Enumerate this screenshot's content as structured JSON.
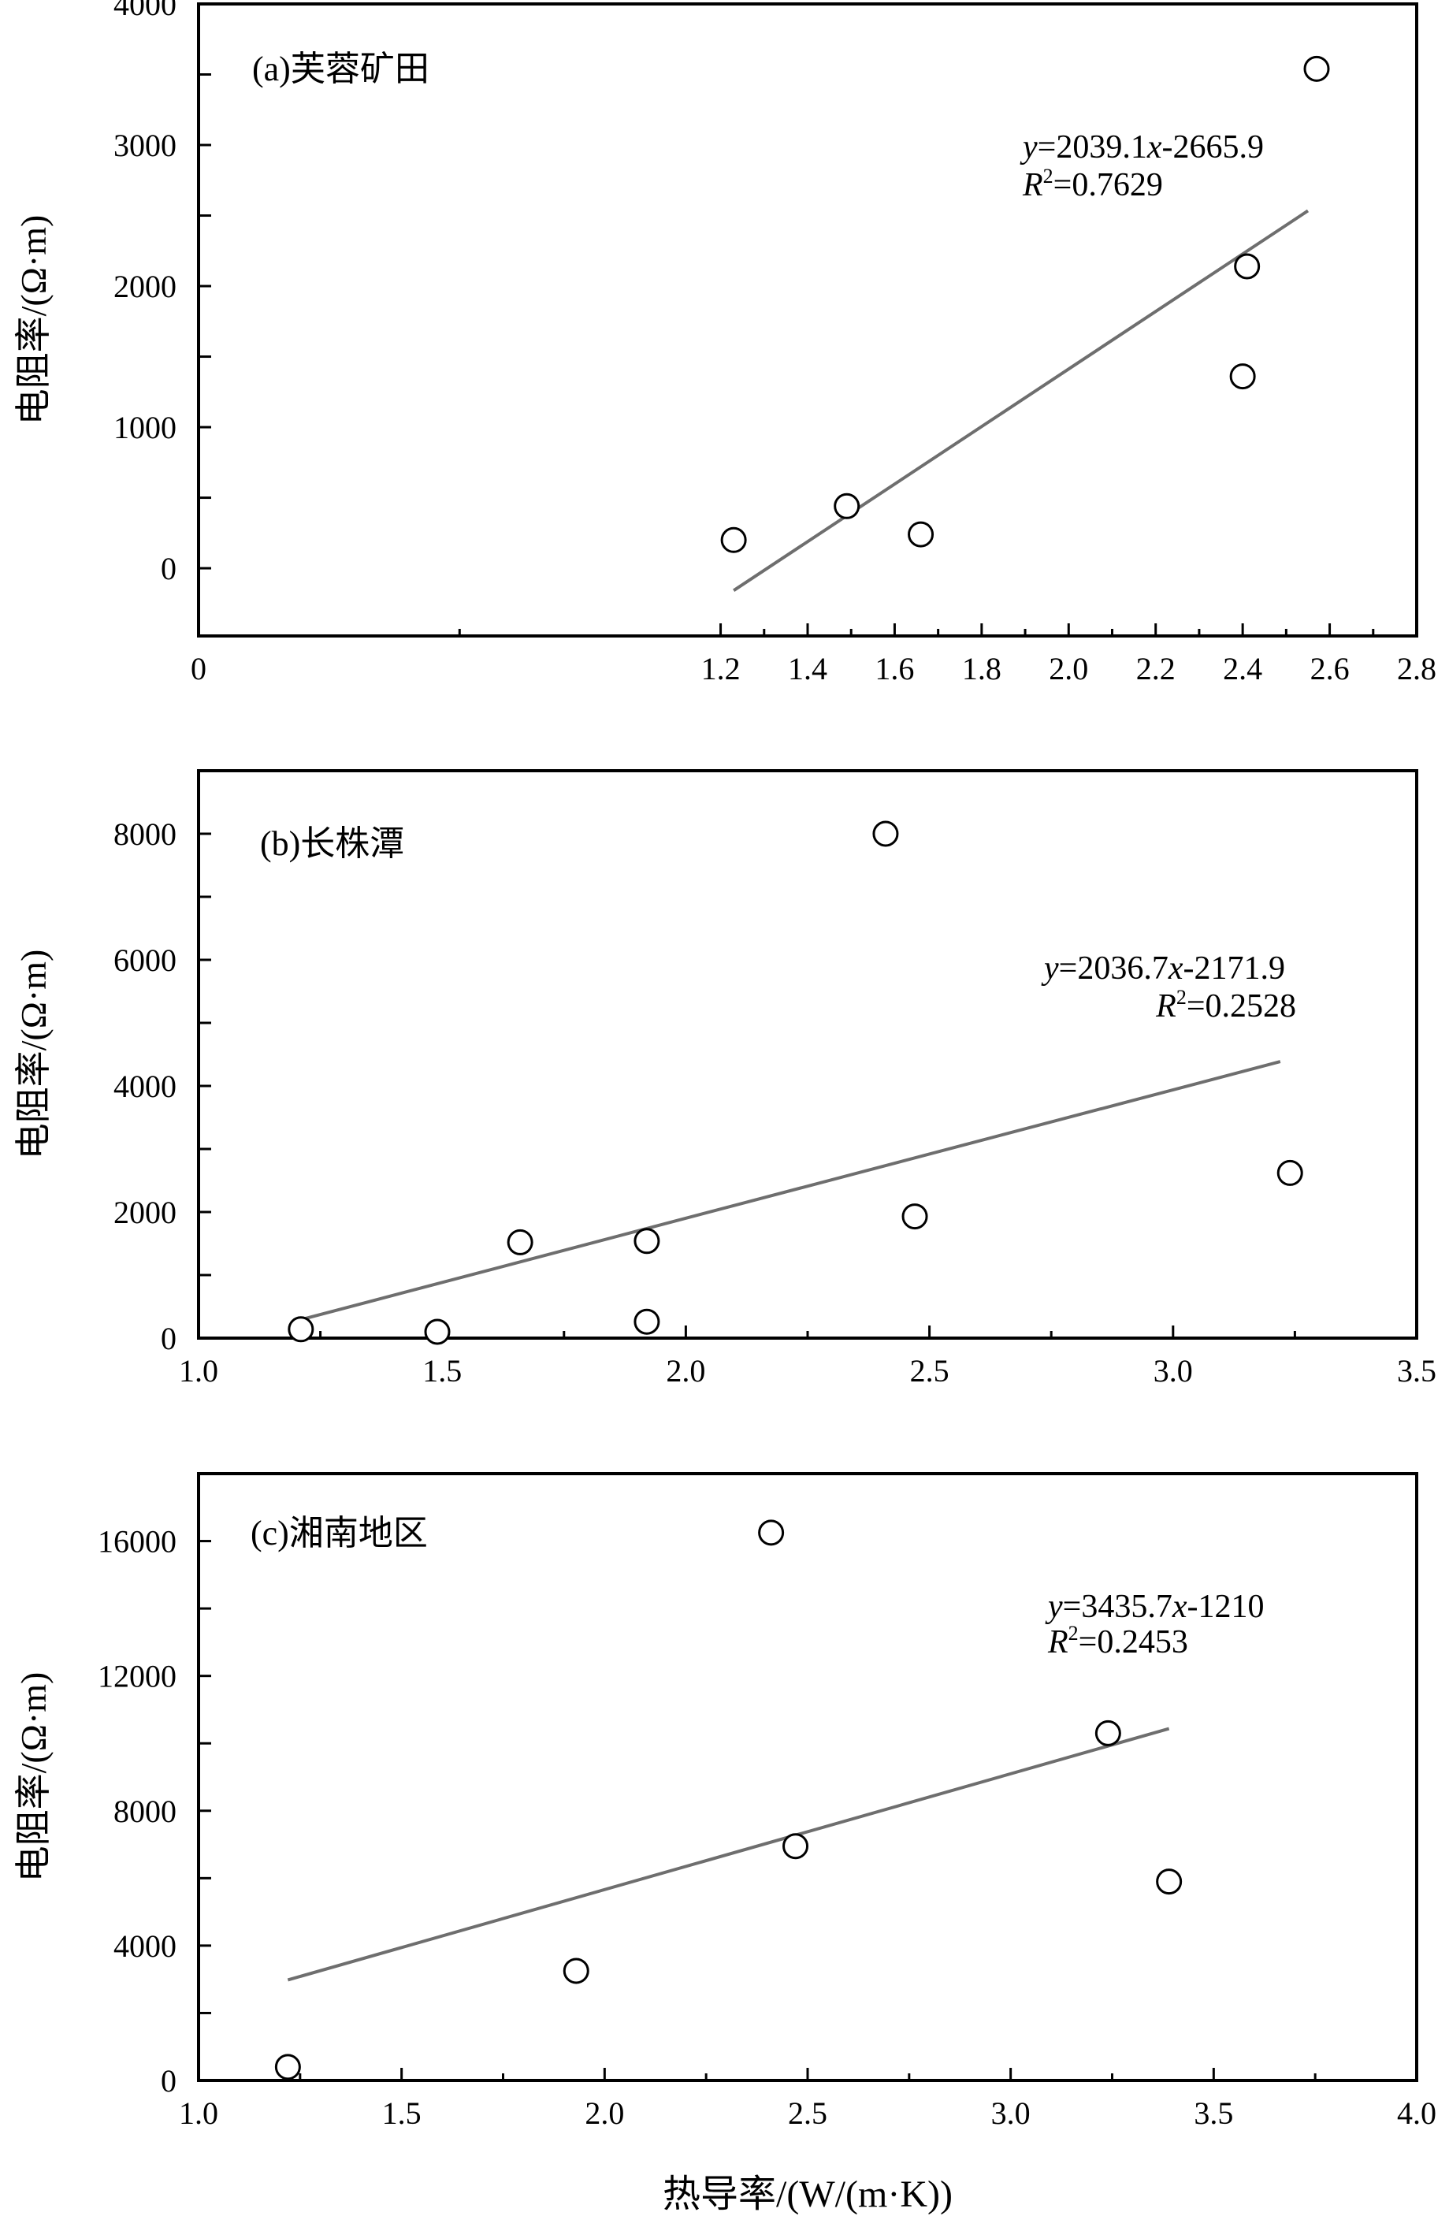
{
  "x_axis_label": "热导率/(W/(m·K))",
  "chart_data": [
    {
      "type": "scatter",
      "title": "(a)芙蓉矿田",
      "ylabel": "电阻率/(Ω·m)",
      "xlabel": "",
      "xlim": [
        0,
        2.8
      ],
      "ylim": [
        -480,
        4000
      ],
      "x_ticks": [
        0,
        1.2,
        1.4,
        1.6,
        1.8,
        2.0,
        2.2,
        2.4,
        2.6,
        2.8
      ],
      "x_tick_labels": [
        "0",
        "1.2",
        "1.4",
        "1.6",
        "1.8",
        "2.0",
        "2.2",
        "2.4",
        "2.6",
        "2.8"
      ],
      "y_ticks": [
        0,
        1000,
        2000,
        3000,
        4000
      ],
      "y_tick_labels": [
        "0",
        "1000",
        "2000",
        "3000",
        "4000"
      ],
      "y_minor_ticks": [
        500,
        1500,
        2500,
        3500
      ],
      "points": [
        {
          "x": 1.23,
          "y": 200
        },
        {
          "x": 1.49,
          "y": 440
        },
        {
          "x": 1.66,
          "y": 240
        },
        {
          "x": 2.4,
          "y": 1360
        },
        {
          "x": 2.41,
          "y": 2140
        },
        {
          "x": 2.57,
          "y": 3540
        }
      ],
      "trendline": {
        "slope": 2039.1,
        "intercept": -2665.9,
        "x_range": [
          1.23,
          2.55
        ]
      },
      "equation": {
        "y": "y",
        "rest": "=2039.1",
        "x": "x",
        "tail": "-2665.9"
      },
      "r2": {
        "r": "R",
        "sup": "2",
        "value": "=0.7629"
      },
      "grid": false
    },
    {
      "type": "scatter",
      "title": "(b)长株潭",
      "ylabel": "电阻率/(Ω·m)",
      "xlabel": "",
      "xlim": [
        1.0,
        3.5
      ],
      "ylim": [
        0,
        9000
      ],
      "x_ticks": [
        1.0,
        1.5,
        2.0,
        2.5,
        3.0,
        3.5
      ],
      "x_tick_labels": [
        "1.0",
        "1.5",
        "2.0",
        "2.5",
        "3.0",
        "3.5"
      ],
      "y_ticks": [
        0,
        2000,
        4000,
        6000,
        8000
      ],
      "y_tick_labels": [
        "0",
        "2000",
        "4000",
        "6000",
        "8000"
      ],
      "y_minor_ticks": [
        1000,
        3000,
        5000,
        7000
      ],
      "points": [
        {
          "x": 1.21,
          "y": 140
        },
        {
          "x": 1.49,
          "y": 100
        },
        {
          "x": 1.66,
          "y": 1520
        },
        {
          "x": 1.92,
          "y": 1540
        },
        {
          "x": 1.92,
          "y": 260
        },
        {
          "x": 2.41,
          "y": 8000
        },
        {
          "x": 2.47,
          "y": 1930
        },
        {
          "x": 3.24,
          "y": 2620
        }
      ],
      "trendline": {
        "slope": 2036.7,
        "intercept": -2171.9,
        "x_range": [
          1.21,
          3.22
        ]
      },
      "equation": {
        "y": "y",
        "rest": "=2036.7",
        "x": "x",
        "tail": "-2171.9"
      },
      "r2": {
        "r": "R",
        "sup": "2",
        "value": "=0.2528"
      },
      "grid": false
    },
    {
      "type": "scatter",
      "title": "(c)湘南地区",
      "ylabel": "电阻率/(Ω·m)",
      "xlabel": "热导率/(W/(m·K))",
      "xlim": [
        1.0,
        4.0
      ],
      "ylim": [
        0,
        18000
      ],
      "x_ticks": [
        1.0,
        1.5,
        2.0,
        2.5,
        3.0,
        3.5,
        4.0
      ],
      "x_tick_labels": [
        "1.0",
        "1.5",
        "2.0",
        "2.5",
        "3.0",
        "3.5",
        "4.0"
      ],
      "y_ticks": [
        0,
        4000,
        8000,
        12000,
        16000
      ],
      "y_tick_labels": [
        "0",
        "4000",
        "8000",
        "12000",
        "16000"
      ],
      "y_minor_ticks": [
        2000,
        6000,
        10000,
        14000
      ],
      "points": [
        {
          "x": 1.22,
          "y": 400
        },
        {
          "x": 1.93,
          "y": 3250
        },
        {
          "x": 2.41,
          "y": 16250
        },
        {
          "x": 2.47,
          "y": 6950
        },
        {
          "x": 3.24,
          "y": 10300
        },
        {
          "x": 3.39,
          "y": 5900
        }
      ],
      "trendline": {
        "slope": 3435.7,
        "intercept": -1210,
        "x_range": [
          1.22,
          3.39
        ]
      },
      "equation": {
        "y": "y",
        "rest": "=3435.7",
        "x": "x",
        "tail": "-1210"
      },
      "r2": {
        "r": "R",
        "sup": "2",
        "value": "=0.2453"
      },
      "grid": false
    }
  ]
}
